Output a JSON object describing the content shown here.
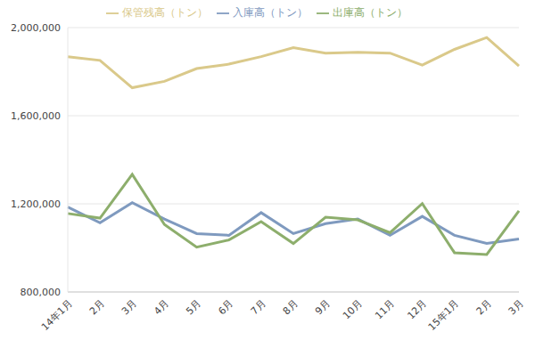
{
  "chart_data": {
    "type": "line",
    "categories": [
      "14年1月",
      "2月",
      "3月",
      "4月",
      "5月",
      "6月",
      "7月",
      "8月",
      "9月",
      "10月",
      "11月",
      "12月",
      "15年1月",
      "2月",
      "3月"
    ],
    "series": [
      {
        "name": "入庫高（トン）",
        "color": "#7f9abf",
        "values": [
          1185000,
          1114000,
          1205000,
          1131000,
          1065000,
          1057000,
          1160000,
          1065000,
          1110000,
          1131000,
          1057000,
          1143000,
          1057000,
          1020000,
          1040000
        ]
      },
      {
        "name": "出庫高（トン）",
        "color": "#8dae6c",
        "values": [
          1156000,
          1135000,
          1334000,
          1106000,
          1003000,
          1036000,
          1119000,
          1020000,
          1139000,
          1127000,
          1069000,
          1201000,
          978000,
          970000,
          1168000
        ]
      },
      {
        "name": "保管残高（トン）",
        "color": "#dac98a",
        "values": [
          1868000,
          1851000,
          1727000,
          1756000,
          1814000,
          1834000,
          1868000,
          1909000,
          1884000,
          1888000,
          1884000,
          1830000,
          1901000,
          1955000,
          1826000
        ]
      }
    ],
    "ylim": [
      800000,
      2000000
    ],
    "yticks": [
      {
        "value": 800000,
        "label": "800,000"
      },
      {
        "value": 1200000,
        "label": "1,200,000"
      },
      {
        "value": 1600000,
        "label": "1,600,000"
      },
      {
        "value": 2000000,
        "label": "2,000,000"
      }
    ],
    "grid": true,
    "legend": "top"
  }
}
